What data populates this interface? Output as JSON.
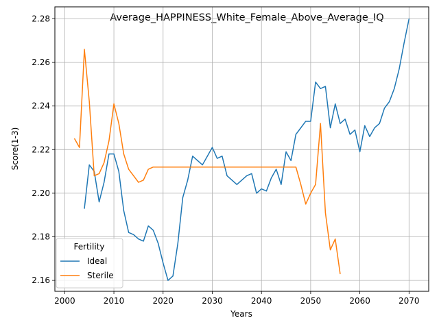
{
  "chart_data": {
    "type": "line",
    "title": "Average_HAPPINESS_White_Female_Above_Average_IQ",
    "xlabel": "Years",
    "ylabel": "Score(1-3)",
    "xlim": [
      1998,
      2074
    ],
    "ylim": [
      2.155,
      2.2855
    ],
    "x_ticks": [
      2000,
      2010,
      2020,
      2030,
      2040,
      2050,
      2060,
      2070
    ],
    "y_ticks": [
      2.16,
      2.18,
      2.2,
      2.22,
      2.24,
      2.26,
      2.28
    ],
    "y_tick_labels": [
      "2.16",
      "2.18",
      "2.20",
      "2.22",
      "2.24",
      "2.26",
      "2.28"
    ],
    "grid": true,
    "legend": {
      "title": "Fertility",
      "placement": "lower-left"
    },
    "series": [
      {
        "name": "Ideal",
        "color": "#1f77b4",
        "x": [
          2004,
          2005,
          2006,
          2007,
          2008,
          2009,
          2010,
          2011,
          2012,
          2013,
          2014,
          2015,
          2016,
          2017,
          2018,
          2019,
          2020,
          2021,
          2022,
          2023,
          2024,
          2025,
          2026,
          2027,
          2028,
          2029,
          2030,
          2031,
          2032,
          2033,
          2034,
          2035,
          2036,
          2037,
          2038,
          2039,
          2040,
          2041,
          2042,
          2043,
          2044,
          2045,
          2046,
          2047,
          2048,
          2049,
          2050,
          2051,
          2052,
          2053,
          2054,
          2055,
          2056,
          2057,
          2058,
          2059,
          2060,
          2061,
          2062,
          2063,
          2064,
          2065,
          2066,
          2067,
          2068,
          2069,
          2070
        ],
        "values": [
          2.193,
          2.213,
          2.21,
          2.196,
          2.205,
          2.218,
          2.218,
          2.21,
          2.192,
          2.182,
          2.181,
          2.179,
          2.178,
          2.185,
          2.183,
          2.177,
          2.168,
          2.16,
          2.162,
          2.177,
          2.198,
          2.206,
          2.217,
          2.215,
          2.213,
          2.217,
          2.221,
          2.216,
          2.217,
          2.208,
          2.206,
          2.204,
          2.206,
          2.208,
          2.209,
          2.2,
          2.202,
          2.201,
          2.207,
          2.211,
          2.204,
          2.219,
          2.215,
          2.227,
          2.23,
          2.233,
          2.233,
          2.251,
          2.248,
          2.249,
          2.23,
          2.241,
          2.232,
          2.234,
          2.227,
          2.229,
          2.219,
          2.231,
          2.226,
          2.23,
          2.232,
          2.239,
          2.242,
          2.248,
          2.257,
          2.269,
          2.28
        ]
      },
      {
        "name": "Sterile",
        "color": "#ff7f0e",
        "x": [
          2002,
          2003,
          2004,
          2005,
          2006,
          2007,
          2008,
          2009,
          2010,
          2011,
          2012,
          2013,
          2014,
          2015,
          2016,
          2017,
          2018,
          2019,
          2020,
          2021,
          2022,
          2023,
          2024,
          2025,
          2026,
          2027,
          2028,
          2029,
          2030,
          2031,
          2032,
          2033,
          2034,
          2035,
          2036,
          2037,
          2038,
          2039,
          2040,
          2041,
          2042,
          2043,
          2044,
          2045,
          2046,
          2047,
          2048,
          2049,
          2050,
          2051,
          2052,
          2053,
          2054,
          2055,
          2056
        ],
        "values": [
          2.225,
          2.221,
          2.266,
          2.242,
          2.208,
          2.209,
          2.214,
          2.224,
          2.241,
          2.232,
          2.218,
          2.211,
          2.208,
          2.205,
          2.206,
          2.211,
          2.212,
          2.212,
          2.212,
          2.212,
          2.212,
          2.212,
          2.212,
          2.212,
          2.212,
          2.212,
          2.212,
          2.212,
          2.212,
          2.212,
          2.212,
          2.212,
          2.212,
          2.212,
          2.212,
          2.212,
          2.212,
          2.212,
          2.212,
          2.212,
          2.212,
          2.212,
          2.212,
          2.212,
          2.212,
          2.212,
          2.204,
          2.195,
          2.2,
          2.204,
          2.232,
          2.191,
          2.174,
          2.179,
          2.163
        ]
      }
    ]
  }
}
